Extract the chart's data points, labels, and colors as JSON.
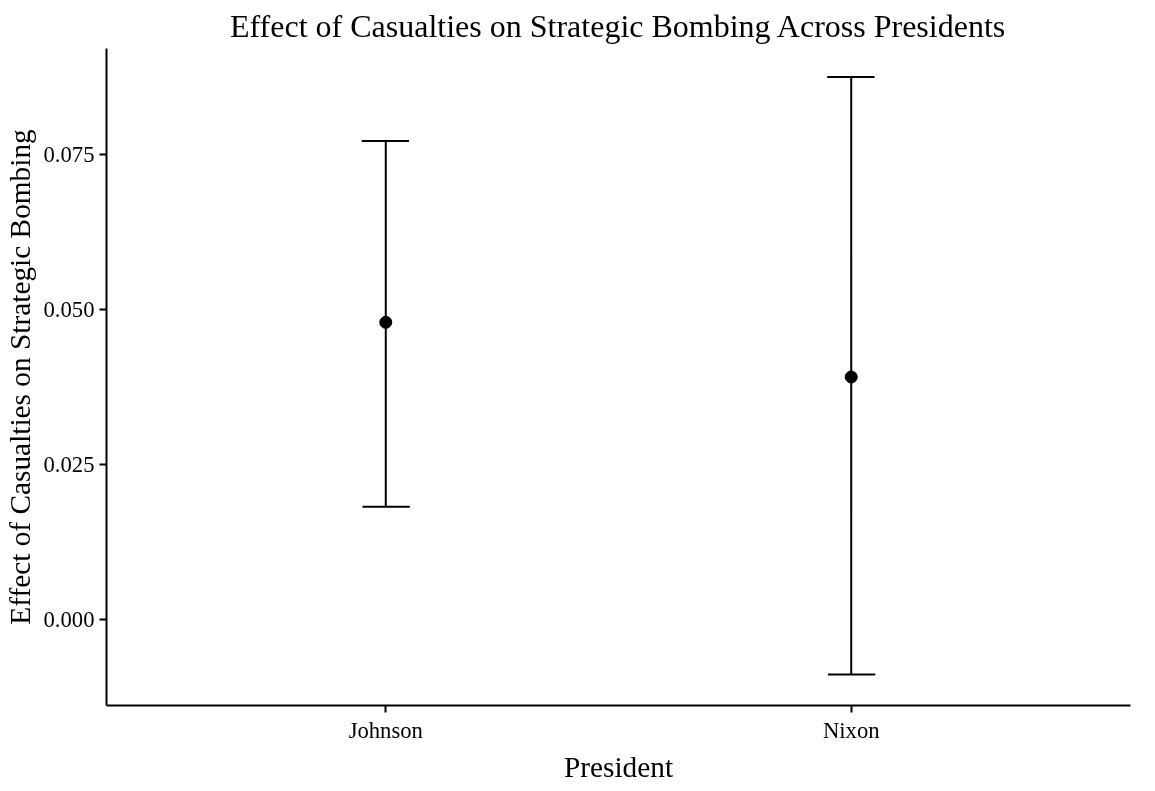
{
  "chart_data": {
    "type": "scatter",
    "title": "Effect of Casualties on Strategic Bombing Across Presidents",
    "xlabel": "President",
    "ylabel": "Effect of Casualties on Strategic Bombing",
    "categories": [
      "Johnson",
      "Nixon"
    ],
    "series": [
      {
        "color": "#000000",
        "values": [
          0.0479,
          0.0391
        ],
        "errors": [
          [
            0.0182,
            0.0771
          ],
          [
            -0.0088,
            0.0874
          ]
        ]
      }
    ],
    "ylim": [
      -0.0138,
      0.092
    ],
    "yticks": [
      {
        "value": 0,
        "label": "0.000"
      },
      {
        "value": 0.025,
        "label": "0.025"
      },
      {
        "value": 0.05,
        "label": "0.050"
      },
      {
        "value": 0.075,
        "label": "0.075"
      }
    ],
    "grid": false,
    "marker": "circle"
  }
}
